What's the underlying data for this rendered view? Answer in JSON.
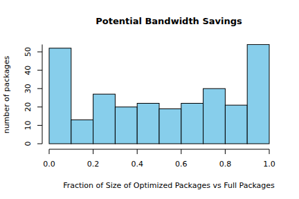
{
  "chart_data": {
    "type": "histogram",
    "title": "Potential Bandwidth Savings",
    "x_label": "Fraction of Size of Optimized Packages vs Full Packages",
    "y_label": "number of packages",
    "bins": [
      0,
      0.1,
      0.2,
      0.3,
      0.4,
      0.5,
      0.6,
      0.7,
      0.8,
      0.9,
      1.0
    ],
    "values": [
      52,
      13,
      27,
      20,
      22,
      19,
      22,
      30,
      21,
      54
    ],
    "color": "#87ceeb",
    "xlim": [
      0,
      1
    ],
    "ylim": [
      0,
      54
    ],
    "xticks": [
      {
        "value": 0,
        "label": "0.0"
      },
      0.2,
      0.4,
      0.6,
      0.8,
      {
        "value": 1,
        "label": "1.0"
      }
    ],
    "yticks": [
      0,
      10,
      20,
      30,
      40,
      50
    ]
  }
}
